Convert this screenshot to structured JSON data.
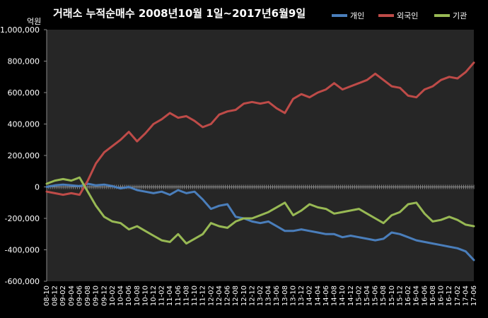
{
  "chart_data": {
    "type": "line",
    "title": "거래소 누적순매수 2008년10월 1일~2017년6월9일",
    "ylabel": "억원",
    "xlabel": "",
    "ylim": [
      -600000,
      1000000
    ],
    "yticks": [
      1000000,
      800000,
      600000,
      400000,
      200000,
      0,
      -200000,
      -400000,
      -600000
    ],
    "ytick_labels": [
      "1,000,000",
      "800,000",
      "600,000",
      "400,000",
      "200,000",
      "0",
      "-200,000",
      "-400,000",
      "-600,000"
    ],
    "legend_position": "top-right",
    "grid": false,
    "x_labels": [
      "08-10",
      "08-12",
      "09-02",
      "09-04",
      "09-06",
      "09-08",
      "09-10",
      "09-12",
      "10-02",
      "10-04",
      "10-06",
      "10-08",
      "10-10",
      "10-12",
      "11-02",
      "11-04",
      "11-06",
      "11-08",
      "11-10",
      "11-12",
      "12-02",
      "12-04",
      "12-06",
      "12-08",
      "12-10",
      "12-12",
      "13-02",
      "13-04",
      "13-06",
      "13-08",
      "13-10",
      "13-12",
      "14-02",
      "14-04",
      "14-06",
      "14-08",
      "14-10",
      "14-12",
      "15-02",
      "15-04",
      "15-06",
      "15-08",
      "15-10",
      "15-12",
      "16-02",
      "16-04",
      "16-06",
      "16-08",
      "16-10",
      "16-12",
      "17-02",
      "17-04",
      "17-06"
    ],
    "series": [
      {
        "name": "개인",
        "color": "#4a7ebb",
        "values": [
          0,
          10000,
          15000,
          10000,
          5000,
          20000,
          10000,
          15000,
          5000,
          -10000,
          0,
          -20000,
          -30000,
          -40000,
          -30000,
          -50000,
          -20000,
          -40000,
          -30000,
          -80000,
          -140000,
          -120000,
          -110000,
          -190000,
          -200000,
          -220000,
          -230000,
          -220000,
          -250000,
          -280000,
          -280000,
          -270000,
          -280000,
          -290000,
          -300000,
          -300000,
          -320000,
          -310000,
          -320000,
          -330000,
          -340000,
          -330000,
          -290000,
          -300000,
          -320000,
          -340000,
          -350000,
          -360000,
          -370000,
          -380000,
          -390000,
          -410000,
          -465000
        ]
      },
      {
        "name": "외국인",
        "color": "#be4b48",
        "values": [
          -30000,
          -40000,
          -50000,
          -40000,
          -50000,
          40000,
          150000,
          220000,
          260000,
          300000,
          350000,
          290000,
          340000,
          400000,
          430000,
          470000,
          440000,
          450000,
          420000,
          380000,
          400000,
          460000,
          480000,
          490000,
          530000,
          540000,
          530000,
          540000,
          500000,
          470000,
          560000,
          590000,
          570000,
          600000,
          620000,
          660000,
          620000,
          640000,
          660000,
          680000,
          720000,
          680000,
          640000,
          630000,
          580000,
          570000,
          620000,
          640000,
          680000,
          700000,
          690000,
          730000,
          790000
        ]
      },
      {
        "name": "기관",
        "color": "#98b954",
        "values": [
          20000,
          40000,
          50000,
          40000,
          60000,
          -30000,
          -120000,
          -190000,
          -220000,
          -230000,
          -270000,
          -250000,
          -280000,
          -310000,
          -340000,
          -350000,
          -300000,
          -360000,
          -330000,
          -300000,
          -230000,
          -250000,
          -260000,
          -220000,
          -200000,
          -200000,
          -180000,
          -160000,
          -130000,
          -100000,
          -180000,
          -150000,
          -110000,
          -130000,
          -140000,
          -170000,
          -160000,
          -150000,
          -140000,
          -170000,
          -200000,
          -230000,
          -180000,
          -160000,
          -110000,
          -100000,
          -170000,
          -220000,
          -210000,
          -190000,
          -210000,
          -240000,
          -250000
        ]
      }
    ]
  }
}
